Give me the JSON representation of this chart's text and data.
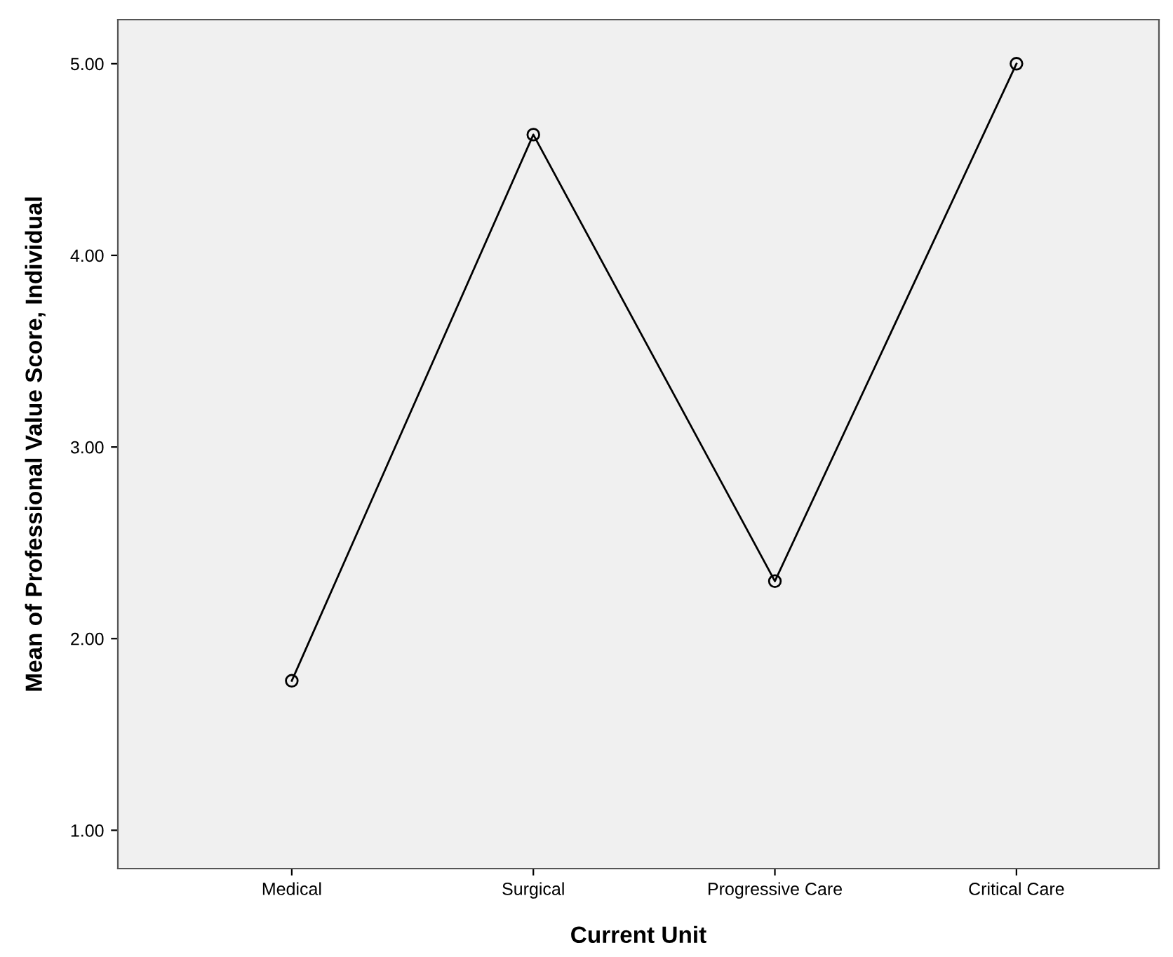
{
  "chart_data": {
    "type": "line",
    "xlabel": "Current Unit",
    "ylabel": "Mean of Professional Value Score, Individual",
    "categories": [
      "Medical",
      "Surgical",
      "Progressive Care",
      "Critical Care"
    ],
    "values": [
      1.78,
      4.63,
      2.3,
      5.0
    ],
    "color": "#000000",
    "ylim": [
      0.8,
      5.23
    ],
    "yticks": [
      {
        "value": 1,
        "label": "1.00"
      },
      {
        "value": 2,
        "label": "2.00"
      },
      {
        "value": 3,
        "label": "3.00"
      },
      {
        "value": 4,
        "label": "4.00"
      },
      {
        "value": 5,
        "label": "5.00"
      }
    ],
    "grid": false,
    "marker": "circle",
    "line_style": "solid"
  }
}
